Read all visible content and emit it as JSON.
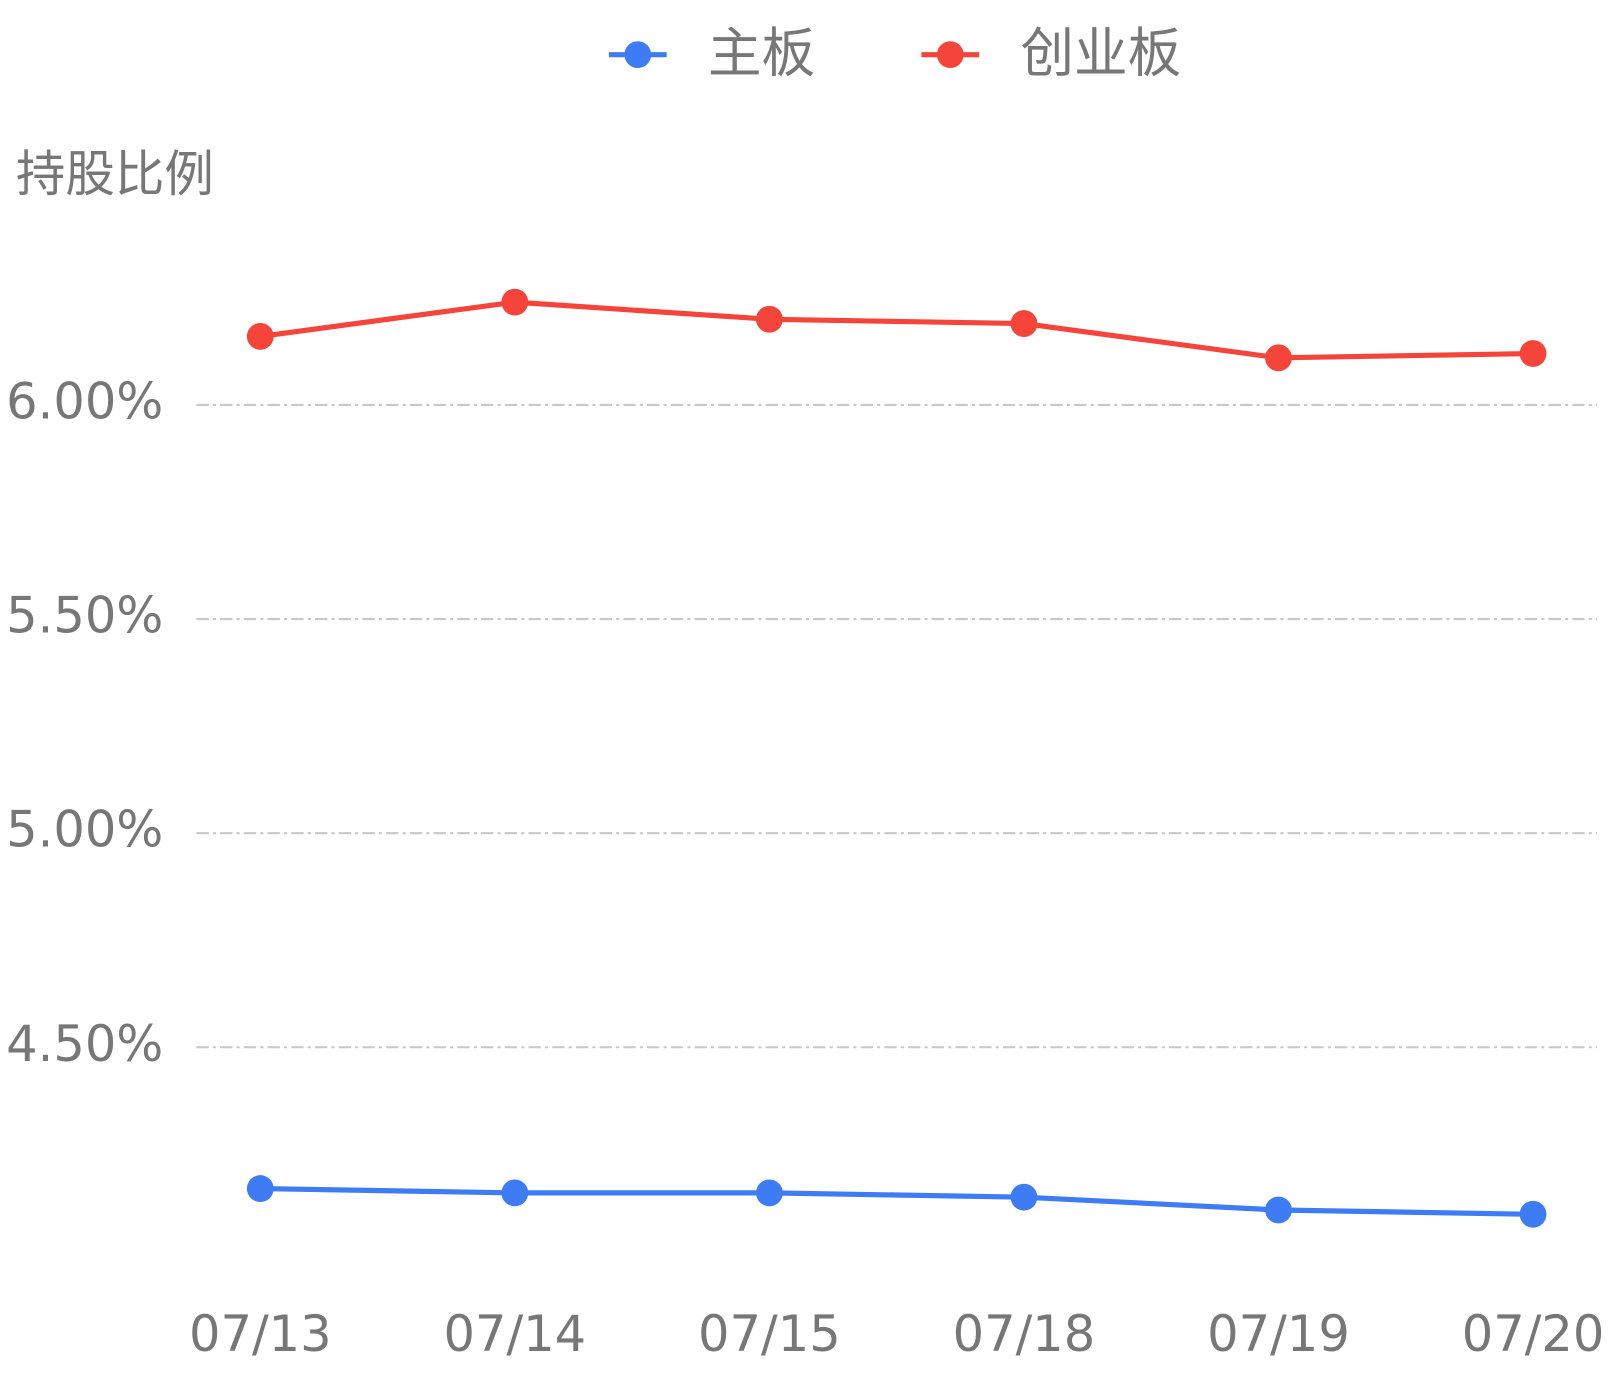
{
  "chart_data": {
    "type": "line",
    "y_label": "持股比例",
    "categories": [
      "07/13",
      "07/14",
      "07/15",
      "07/18",
      "07/19",
      "07/20"
    ],
    "series": [
      {
        "name": "主板",
        "color": "#3d7cf5",
        "values": [
          4.17,
          4.16,
          4.16,
          4.15,
          4.12,
          4.11
        ]
      },
      {
        "name": "创业板",
        "color": "#f5443a",
        "values": [
          6.16,
          6.24,
          6.2,
          6.19,
          6.11,
          6.12
        ]
      }
    ],
    "ylim": [
      4.0,
      6.5
    ],
    "yticks": [
      {
        "value": 4.5,
        "label": "4.50%"
      },
      {
        "value": 5.0,
        "label": "5.00%"
      },
      {
        "value": 5.5,
        "label": "5.50%"
      },
      {
        "value": 6.0,
        "label": "6.00%"
      }
    ],
    "grid": true,
    "legend": "top"
  }
}
